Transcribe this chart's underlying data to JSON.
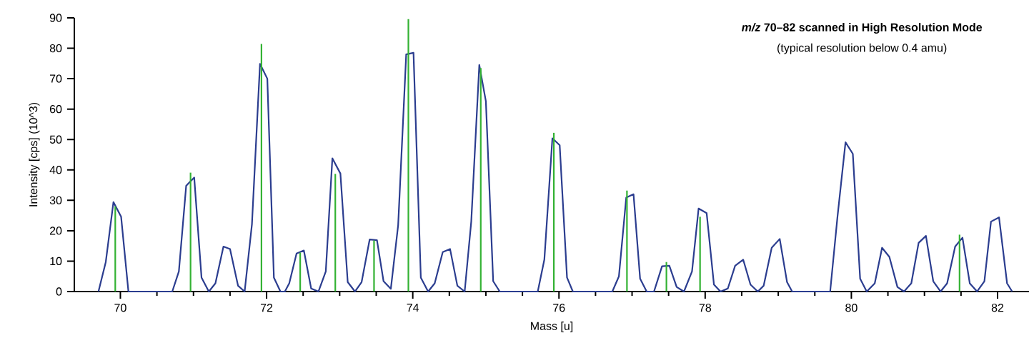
{
  "chart_data": {
    "type": "line",
    "title": "*m/z* 70–82 scanned in High Resolution Mode",
    "subtitle": "(typical resolution below 0.4 amu)",
    "xlabel": "Mass [u]",
    "ylabel": "Intensity [cps] (10^3)",
    "xlim": [
      69.37,
      82.43
    ],
    "ylim": [
      0,
      90
    ],
    "xticks": [
      70,
      72,
      74,
      76,
      78,
      80,
      82
    ],
    "yticks": [
      0,
      10,
      20,
      30,
      40,
      50,
      60,
      70,
      80,
      90
    ],
    "grid": false,
    "legend": false,
    "series": [
      {
        "color": "#2b3d8f",
        "x": [
          69.7,
          69.8,
          69.905,
          70.01,
          70.11,
          70.71,
          70.8,
          70.9,
          71.01,
          71.11,
          71.21,
          71.3,
          71.41,
          71.5,
          71.61,
          71.7,
          71.8,
          71.91,
          72.01,
          72.1,
          72.19,
          72.25,
          72.31,
          72.41,
          72.51,
          72.61,
          72.71,
          72.81,
          72.9,
          73.01,
          73.11,
          73.21,
          73.3,
          73.41,
          73.51,
          73.6,
          73.7,
          73.8,
          73.91,
          74.01,
          74.11,
          74.21,
          74.3,
          74.41,
          74.51,
          74.61,
          74.71,
          74.8,
          74.91,
          75.0,
          75.1,
          75.19,
          75.71,
          75.8,
          75.91,
          76.01,
          76.11,
          76.19,
          76.73,
          76.82,
          76.92,
          77.02,
          77.11,
          77.2,
          77.3,
          77.41,
          77.51,
          77.61,
          77.71,
          77.82,
          77.91,
          78.02,
          78.12,
          78.21,
          78.31,
          78.41,
          78.52,
          78.62,
          78.72,
          78.8,
          78.91,
          79.02,
          79.12,
          79.19,
          79.71,
          79.81,
          79.92,
          80.02,
          80.12,
          80.21,
          80.32,
          80.42,
          80.52,
          80.63,
          80.72,
          80.82,
          80.92,
          81.02,
          81.12,
          81.22,
          81.31,
          81.42,
          81.52,
          81.62,
          81.72,
          81.82,
          81.91,
          82.02,
          82.13,
          82.2
        ],
        "values": [
          0,
          9.7,
          29.4,
          24.6,
          0,
          0,
          6.6,
          34.8,
          37.5,
          4.6,
          0,
          2.7,
          14.8,
          14.0,
          1.9,
          0,
          22.2,
          74.9,
          70.0,
          4.6,
          0,
          0,
          2.7,
          12.5,
          13.5,
          1,
          0,
          6.6,
          43.8,
          38.8,
          3.1,
          0,
          3.1,
          17.1,
          16.9,
          3.4,
          0.9,
          21.8,
          78.0,
          78.5,
          4.6,
          0,
          2.7,
          13.0,
          14.0,
          1.9,
          0,
          23.0,
          74.5,
          62.6,
          3.4,
          0,
          0,
          10.5,
          50.4,
          48.1,
          4.6,
          0,
          0,
          5.0,
          30.9,
          32.0,
          4.2,
          0,
          0,
          8.3,
          8.5,
          1.5,
          0,
          6.6,
          27.3,
          25.8,
          2.3,
          0,
          1,
          8.5,
          10.5,
          2.3,
          0,
          1.9,
          14.4,
          17.3,
          3.1,
          0,
          0,
          24.6,
          49.1,
          45.3,
          4.2,
          0,
          2.7,
          14.4,
          11.4,
          1.5,
          0,
          2.7,
          16.0,
          18.3,
          3.4,
          0,
          2.7,
          14.8,
          17.7,
          2.7,
          0,
          3.4,
          23.0,
          24.4,
          2.7,
          0
        ]
      },
      {
        "type": "bar",
        "color": "#33b233",
        "x": [
          69.93,
          70.96,
          71.93,
          72.46,
          72.94,
          73.47,
          73.94,
          74.93,
          75.93,
          76.93,
          77.47,
          77.93,
          81.48
        ],
        "values": [
          28,
          39.1,
          81.4,
          12.8,
          38.7,
          16.8,
          89.6,
          73.5,
          52.2,
          33.2,
          9.7,
          24.6,
          18.7
        ]
      }
    ]
  }
}
